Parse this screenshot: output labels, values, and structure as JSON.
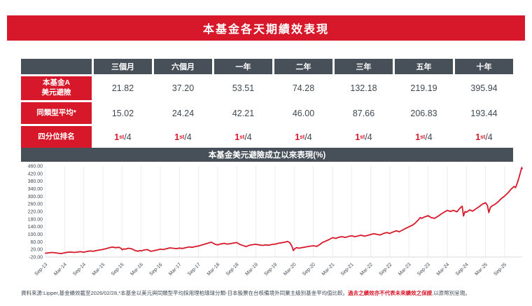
{
  "title": "本基金各天期績效表現",
  "colors": {
    "accent_red": "#d7182a",
    "header_slate": "#475059",
    "value_text": "#3d4852",
    "grid": "#ececec",
    "axis": "#d8d8d8"
  },
  "table": {
    "columns": [
      "三個月",
      "六個月",
      "一年",
      "二年",
      "三年",
      "五年",
      "十年"
    ],
    "rows": [
      {
        "label": "本基金A\n美元避險",
        "values": [
          "21.82",
          "37.20",
          "53.51",
          "74.28",
          "132.18",
          "219.19",
          "395.94"
        ]
      },
      {
        "label": "同類型平均*",
        "values": [
          "15.02",
          "24.24",
          "42.21",
          "46.00",
          "87.66",
          "206.83",
          "193.44"
        ]
      }
    ],
    "quartile_row": {
      "label": "四分位排名",
      "values": [
        {
          "rank": "1",
          "sup": "st",
          "rest": "/4"
        },
        {
          "rank": "1",
          "sup": "st",
          "rest": "/4"
        },
        {
          "rank": "1",
          "sup": "st",
          "rest": "/4"
        },
        {
          "rank": "1",
          "sup": "st",
          "rest": "/4"
        },
        {
          "rank": "1",
          "sup": "st",
          "rest": "/4"
        },
        {
          "rank": "1",
          "sup": "st",
          "rest": "/4"
        },
        {
          "rank": "1",
          "sup": "st",
          "rest": "/4"
        }
      ]
    }
  },
  "chart_data": {
    "type": "line",
    "title": "本基金美元避險成立以來表現(%)",
    "x_tick_labels": [
      "Sep-13",
      "Mar-14",
      "Sep-14",
      "Mar-15",
      "Sep-15",
      "Mar-16",
      "Sep-16",
      "Mar-17",
      "Sep-17",
      "Mar-18",
      "Sep-18",
      "Mar-19",
      "Sep-19",
      "Mar-20",
      "Sep-20",
      "Mar-21",
      "Sep-21",
      "Mar-22",
      "Sep-22",
      "Mar-23",
      "Sep-23",
      "Mar-24",
      "Sep-24",
      "Mar-25",
      "Sep-25"
    ],
    "x_range_note": "points use fraction 0-1 of span Sep-2013 to Feb-2026 (149.5 months); ticks every 6 months",
    "y_tick_labels": [
      "460.00",
      "420.00",
      "380.00",
      "340.00",
      "300.00",
      "260.00",
      "220.00",
      "180.00",
      "140.00",
      "100.00",
      "60.00",
      "20.00",
      "-20.00"
    ],
    "y_ticks": [
      460,
      420,
      380,
      340,
      300,
      260,
      220,
      180,
      140,
      100,
      60,
      20,
      -20
    ],
    "ylim": [
      -20,
      460
    ],
    "grid": "vertical",
    "legend": "none",
    "series": [
      {
        "name": "本基金A美元避險",
        "color": "#d7182a",
        "points": [
          [
            0.0,
            0
          ],
          [
            0.007,
            2
          ],
          [
            0.013,
            4
          ],
          [
            0.02,
            2
          ],
          [
            0.027,
            0
          ],
          [
            0.033,
            -2
          ],
          [
            0.04,
            2
          ],
          [
            0.047,
            5
          ],
          [
            0.054,
            6
          ],
          [
            0.06,
            4
          ],
          [
            0.067,
            6
          ],
          [
            0.074,
            8
          ],
          [
            0.08,
            5
          ],
          [
            0.087,
            9
          ],
          [
            0.094,
            12
          ],
          [
            0.1,
            10
          ],
          [
            0.107,
            14
          ],
          [
            0.114,
            17
          ],
          [
            0.12,
            20
          ],
          [
            0.127,
            24
          ],
          [
            0.134,
            29
          ],
          [
            0.14,
            32
          ],
          [
            0.147,
            29
          ],
          [
            0.154,
            31
          ],
          [
            0.158,
            26
          ],
          [
            0.161,
            18
          ],
          [
            0.164,
            23
          ],
          [
            0.167,
            21
          ],
          [
            0.174,
            26
          ],
          [
            0.181,
            23
          ],
          [
            0.187,
            15
          ],
          [
            0.194,
            10
          ],
          [
            0.197,
            14
          ],
          [
            0.201,
            12
          ],
          [
            0.207,
            17
          ],
          [
            0.214,
            19
          ],
          [
            0.221,
            10
          ],
          [
            0.227,
            13
          ],
          [
            0.234,
            17
          ],
          [
            0.241,
            21
          ],
          [
            0.247,
            19
          ],
          [
            0.254,
            24
          ],
          [
            0.261,
            28
          ],
          [
            0.268,
            26
          ],
          [
            0.274,
            24
          ],
          [
            0.281,
            27
          ],
          [
            0.288,
            25
          ],
          [
            0.294,
            29
          ],
          [
            0.301,
            33
          ],
          [
            0.308,
            31
          ],
          [
            0.314,
            35
          ],
          [
            0.321,
            38
          ],
          [
            0.328,
            43
          ],
          [
            0.334,
            48
          ],
          [
            0.341,
            53
          ],
          [
            0.348,
            58
          ],
          [
            0.355,
            48
          ],
          [
            0.361,
            44
          ],
          [
            0.368,
            49
          ],
          [
            0.375,
            52
          ],
          [
            0.381,
            48
          ],
          [
            0.388,
            50
          ],
          [
            0.395,
            54
          ],
          [
            0.401,
            56
          ],
          [
            0.408,
            46
          ],
          [
            0.415,
            40
          ],
          [
            0.421,
            35
          ],
          [
            0.428,
            42
          ],
          [
            0.435,
            45
          ],
          [
            0.441,
            47
          ],
          [
            0.448,
            44
          ],
          [
            0.455,
            41
          ],
          [
            0.461,
            44
          ],
          [
            0.468,
            42
          ],
          [
            0.475,
            46
          ],
          [
            0.482,
            48
          ],
          [
            0.488,
            52
          ],
          [
            0.495,
            55
          ],
          [
            0.502,
            58
          ],
          [
            0.508,
            62
          ],
          [
            0.513,
            54
          ],
          [
            0.517,
            36
          ],
          [
            0.52,
            14
          ],
          [
            0.523,
            24
          ],
          [
            0.527,
            30
          ],
          [
            0.531,
            26
          ],
          [
            0.535,
            28
          ],
          [
            0.542,
            31
          ],
          [
            0.548,
            34
          ],
          [
            0.555,
            37
          ],
          [
            0.562,
            39
          ],
          [
            0.569,
            36
          ],
          [
            0.575,
            45
          ],
          [
            0.582,
            58
          ],
          [
            0.589,
            65
          ],
          [
            0.595,
            72
          ],
          [
            0.602,
            82
          ],
          [
            0.609,
            78
          ],
          [
            0.615,
            84
          ],
          [
            0.622,
            87
          ],
          [
            0.629,
            83
          ],
          [
            0.635,
            88
          ],
          [
            0.642,
            92
          ],
          [
            0.649,
            87
          ],
          [
            0.656,
            91
          ],
          [
            0.662,
            95
          ],
          [
            0.669,
            90
          ],
          [
            0.676,
            94
          ],
          [
            0.682,
            98
          ],
          [
            0.689,
            103
          ],
          [
            0.696,
            99
          ],
          [
            0.702,
            96
          ],
          [
            0.709,
            104
          ],
          [
            0.716,
            109
          ],
          [
            0.722,
            104
          ],
          [
            0.729,
            112
          ],
          [
            0.736,
            118
          ],
          [
            0.742,
            113
          ],
          [
            0.749,
            122
          ],
          [
            0.756,
            131
          ],
          [
            0.763,
            140
          ],
          [
            0.77,
            148
          ],
          [
            0.776,
            160
          ],
          [
            0.783,
            178
          ],
          [
            0.786,
            188
          ],
          [
            0.789,
            184
          ],
          [
            0.796,
            192
          ],
          [
            0.803,
            198
          ],
          [
            0.809,
            188
          ],
          [
            0.816,
            184
          ],
          [
            0.823,
            194
          ],
          [
            0.829,
            205
          ],
          [
            0.836,
            216
          ],
          [
            0.843,
            226
          ],
          [
            0.849,
            220
          ],
          [
            0.856,
            226
          ],
          [
            0.863,
            218
          ],
          [
            0.869,
            236
          ],
          [
            0.874,
            248
          ],
          [
            0.877,
            196
          ],
          [
            0.88,
            220
          ],
          [
            0.883,
            216
          ],
          [
            0.89,
            228
          ],
          [
            0.896,
            222
          ],
          [
            0.903,
            234
          ],
          [
            0.91,
            246
          ],
          [
            0.916,
            258
          ],
          [
            0.923,
            266
          ],
          [
            0.927,
            252
          ],
          [
            0.93,
            214
          ],
          [
            0.933,
            240
          ],
          [
            0.936,
            248
          ],
          [
            0.943,
            258
          ],
          [
            0.95,
            272
          ],
          [
            0.956,
            288
          ],
          [
            0.963,
            301
          ],
          [
            0.97,
            318
          ],
          [
            0.976,
            336
          ],
          [
            0.983,
            352
          ],
          [
            0.986,
            346
          ],
          [
            0.99,
            372
          ],
          [
            0.993,
            396
          ],
          [
            0.996,
            424
          ],
          [
            0.999,
            452
          ],
          [
            1.0,
            446
          ]
        ]
      }
    ]
  },
  "footer": {
    "text_before": "資料來源:Lipper,基金績效截至2026/02/28,*本基金以美元與同類型平均採用理柏環球分類-日本股票在台核備境外同業主級別基金平均值比較。",
    "highlight": "過去之績效亦不代表未來績效之保證",
    "text_after": ",以原幣別呈現。"
  }
}
